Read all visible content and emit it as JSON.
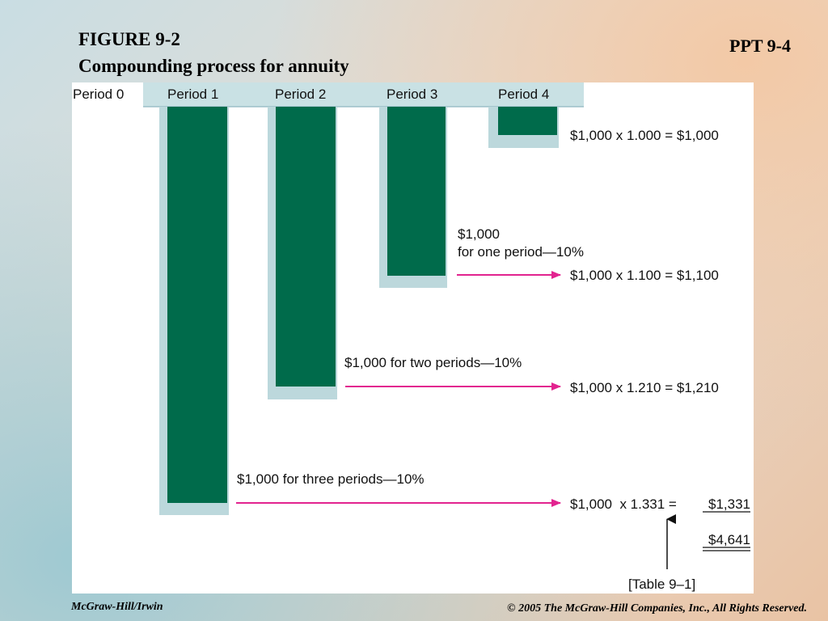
{
  "slide": {
    "title_line1": "FIGURE 9-2",
    "title_line2": "Compounding process for annuity",
    "ppt_label": "PPT 9-4",
    "footer_left": "McGraw-Hill/Irwin",
    "footer_right": "© 2005 The McGraw-Hill Companies, Inc., All Rights Reserved."
  },
  "periods": [
    "Period 0",
    "Period 1",
    "Period 2",
    "Period 3",
    "Period 4"
  ],
  "bar_fill": "#006b4b",
  "shadow_fill": "#bcd8dc",
  "header_fill": "#c9e1e4",
  "arrow_color": "#e2238f",
  "labels": {
    "one_period_a": "$1,000",
    "one_period_b": "for one period—10%",
    "two_periods": "$1,000 for two periods—10%",
    "three_periods": "$1,000 for three periods—10%"
  },
  "results": {
    "r4": "$1,000 x 1.000 = $1,000",
    "r3": "$1,000 x 1.100 = $1,100",
    "r2": "$1,000 x 1.210 = $1,210",
    "r1_left": "$1,000  x 1.331 =",
    "r1_value": "$1,331",
    "total": "$4,641",
    "table_ref": "[Table 9–1]"
  }
}
